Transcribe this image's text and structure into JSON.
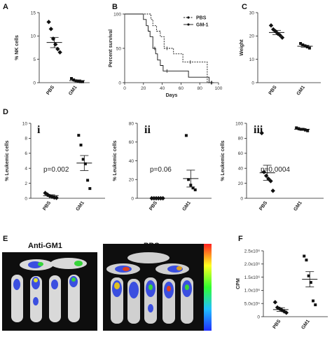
{
  "panels": {
    "A": "A",
    "B": "B",
    "C": "C",
    "D": "D",
    "E": "E",
    "F": "F"
  },
  "images": {
    "left_label": "Anti-GM1",
    "right_label": "PBS"
  },
  "chart_data": [
    {
      "id": "A",
      "type": "scatter",
      "ylabel": "% NK cells",
      "ylim": [
        0,
        15
      ],
      "yticks": [
        0,
        5,
        10,
        15
      ],
      "categories": [
        "PBS",
        "GM1"
      ],
      "points": [
        [
          13,
          11.5,
          9.4,
          8.2,
          7.2,
          6.5
        ],
        [
          0.9,
          0.6,
          0.4,
          0.3,
          0.2,
          0.2
        ]
      ],
      "means": [
        8.6,
        0.45
      ],
      "sem": [
        1.1,
        0.15
      ]
    },
    {
      "id": "B",
      "type": "line",
      "xlabel": "Days",
      "ylabel": "Percent survival",
      "xlim": [
        0,
        100
      ],
      "ylim": [
        0,
        100
      ],
      "xticks": [
        0,
        20,
        40,
        60,
        80,
        100
      ],
      "yticks": [
        0,
        50,
        100
      ],
      "series": [
        {
          "name": "PBS",
          "style": "dashed",
          "steps": [
            [
              0,
              100
            ],
            [
              28,
              100
            ],
            [
              28,
              92
            ],
            [
              30,
              92
            ],
            [
              30,
              83
            ],
            [
              34,
              83
            ],
            [
              34,
              75
            ],
            [
              38,
              75
            ],
            [
              38,
              67
            ],
            [
              42,
              67
            ],
            [
              42,
              50
            ],
            [
              52,
              50
            ],
            [
              52,
              42
            ],
            [
              62,
              42
            ],
            [
              62,
              30
            ],
            [
              88,
              30
            ],
            [
              88,
              0
            ],
            [
              95,
              0
            ]
          ],
          "censored": [
            [
              45,
              50
            ],
            [
              70,
              30
            ],
            [
              93,
              0
            ]
          ]
        },
        {
          "name": "GM-1",
          "style": "solid",
          "steps": [
            [
              0,
              100
            ],
            [
              20,
              100
            ],
            [
              20,
              92
            ],
            [
              23,
              92
            ],
            [
              23,
              83
            ],
            [
              25,
              83
            ],
            [
              25,
              75
            ],
            [
              27,
              75
            ],
            [
              27,
              67
            ],
            [
              30,
              67
            ],
            [
              30,
              50
            ],
            [
              33,
              50
            ],
            [
              33,
              42
            ],
            [
              35,
              42
            ],
            [
              35,
              33
            ],
            [
              38,
              33
            ],
            [
              38,
              25
            ],
            [
              41,
              25
            ],
            [
              41,
              17
            ],
            [
              68,
              17
            ],
            [
              68,
              8
            ],
            [
              90,
              8
            ],
            [
              90,
              0
            ],
            [
              95,
              0
            ]
          ],
          "censored": [
            [
              32,
              50
            ],
            [
              45,
              17
            ],
            [
              92,
              0
            ]
          ]
        }
      ]
    },
    {
      "id": "C",
      "type": "scatter",
      "ylabel": "Weight",
      "ylim": [
        0,
        30
      ],
      "yticks": [
        0,
        10,
        20,
        30
      ],
      "categories": [
        "PBS",
        "GM1"
      ],
      "points": [
        [
          24.5,
          22.8,
          22,
          21,
          20.3,
          19.3
        ],
        [
          16.8,
          16.2,
          15.8,
          15.3,
          14.8
        ]
      ],
      "means": [
        21.5,
        15.6
      ],
      "sem": [
        0.9,
        0.4
      ]
    },
    {
      "id": "Di",
      "type": "scatter",
      "label": "i",
      "ylabel": "% Leukemic cells",
      "ylim": [
        0,
        10
      ],
      "yticks": [
        0,
        2,
        4,
        6,
        8,
        10
      ],
      "categories": [
        "PBS",
        "GM1"
      ],
      "annotation": "p=0.002",
      "points": [
        [
          0.7,
          0.5,
          0.3,
          0.2,
          0.1,
          0.05
        ],
        [
          8.4,
          7.1,
          5.2,
          4.6,
          2.4,
          1.3
        ]
      ],
      "means": [
        0.35,
        4.7
      ],
      "sem": [
        0.12,
        1.0
      ]
    },
    {
      "id": "Dii",
      "type": "scatter",
      "label": "ii",
      "ylabel": "% Leukemic cells",
      "ylim": [
        0,
        80
      ],
      "yticks": [
        0,
        20,
        40,
        60,
        80
      ],
      "categories": [
        "PBS",
        "GM1"
      ],
      "annotation": "p=0.06",
      "points": [
        [
          0,
          0,
          0,
          0,
          0,
          0
        ],
        [
          67,
          20,
          14,
          11,
          9
        ]
      ],
      "means": [
        0,
        21
      ],
      "sem": [
        0,
        9
      ]
    },
    {
      "id": "Diii",
      "type": "scatter",
      "label": "iii",
      "ylabel": "% Leukemic cells",
      "ylim": [
        0,
        100
      ],
      "yticks": [
        0,
        20,
        40,
        60,
        80,
        100
      ],
      "categories": [
        "PBS",
        "GM1"
      ],
      "annotation": "p=0.0004",
      "points": [
        [
          87,
          35,
          30,
          26,
          23,
          10
        ],
        [
          94,
          93,
          92,
          92,
          91,
          90
        ]
      ],
      "means": [
        34,
        92
      ],
      "sem": [
        10,
        1
      ]
    },
    {
      "id": "F",
      "type": "scatter",
      "ylabel": "CPM",
      "ylim": [
        0,
        2500000
      ],
      "yticks": [
        0,
        500000,
        1000000,
        1500000,
        2000000,
        2500000
      ],
      "yticklabels": [
        "0",
        "5.0x10⁵",
        "1.0x10⁶",
        "1.5x10⁶",
        "2.0x10⁶",
        "2.5x10⁶"
      ],
      "categories": [
        "PBS",
        "GM1"
      ],
      "points": [
        [
          550000,
          350000,
          300000,
          250000,
          200000,
          150000
        ],
        [
          2300000,
          2150000,
          1550000,
          1300000,
          600000,
          450000
        ]
      ],
      "means": [
        270000,
        1420000
      ],
      "sem": [
        70000,
        290000
      ]
    }
  ]
}
